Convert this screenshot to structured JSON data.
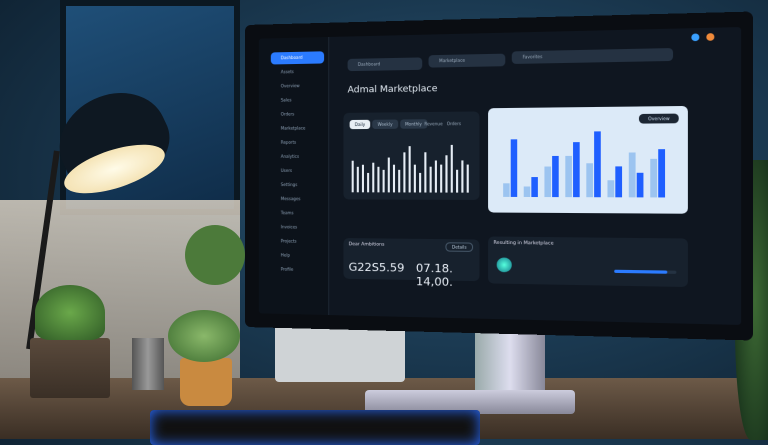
{
  "screen": {
    "top_tabs": [
      "Dashboard",
      "Marketplace",
      "Favorites"
    ],
    "title": "Admal Marketplace",
    "sidebar_items": [
      "Dashboard",
      "Assets",
      "Overview",
      "Sales",
      "Orders",
      "Marketplace",
      "Reports",
      "Analytics",
      "Users",
      "Settings",
      "Messages",
      "Teams",
      "Invoices",
      "Projects",
      "Help",
      "Profile"
    ],
    "left_chart": {
      "buttons": [
        "Daily",
        "Weekly",
        "Monthly"
      ],
      "legend": [
        "Revenue",
        "Orders"
      ],
      "bar_levels": [
        0.62,
        0.5,
        0.55,
        0.38,
        0.58,
        0.5,
        0.45,
        0.68,
        0.55,
        0.45,
        0.78,
        0.9,
        0.55,
        0.38,
        0.78,
        0.5,
        0.62,
        0.55,
        0.72,
        0.92,
        0.45,
        0.62,
        0.55
      ]
    },
    "right_chart": {
      "button": "Overview",
      "series_colors": [
        "#1f5fff",
        "#9cc4f0"
      ],
      "dark_levels": [
        0.85,
        0.3,
        0.6,
        0.8,
        0.95,
        0.45,
        0.35,
        0.7
      ],
      "light_levels": [
        0.2,
        0.15,
        0.45,
        0.6,
        0.5,
        0.25,
        0.65,
        0.55
      ]
    },
    "stats_card": {
      "title": "Dear Ambitions",
      "button": "Details",
      "value1": "G22S5.59",
      "value2": "07.18. 14,00."
    },
    "market_card": {
      "title": "Resulting in Marketplace",
      "progress": 0.85
    }
  }
}
